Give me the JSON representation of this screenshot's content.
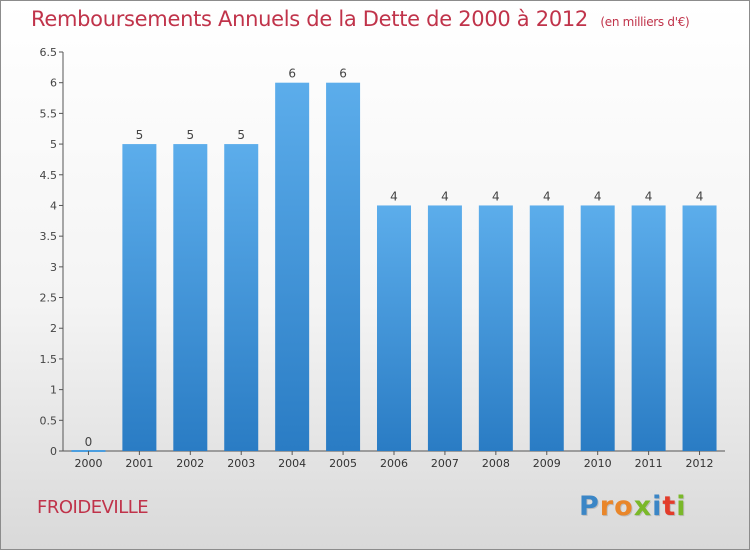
{
  "chart_data": {
    "type": "bar",
    "title": "Remboursements Annuels de la Dette de 2000 à 2012",
    "subtitle": "(en milliers d'€)",
    "categories": [
      "2000",
      "2001",
      "2002",
      "2003",
      "2004",
      "2005",
      "2006",
      "2007",
      "2008",
      "2009",
      "2010",
      "2011",
      "2012"
    ],
    "values": [
      0,
      5,
      5,
      5,
      6,
      6,
      4,
      4,
      4,
      4,
      4,
      4,
      4
    ],
    "data_labels": [
      "0",
      "5",
      "5",
      "5",
      "6",
      "6",
      "4",
      "4",
      "4",
      "4",
      "4",
      "4",
      "4"
    ],
    "y_ticks": [
      "0",
      "0.5",
      "1",
      "1.5",
      "2",
      "2.5",
      "3",
      "3.5",
      "4",
      "4.5",
      "5",
      "5.5",
      "6",
      "6.5"
    ],
    "ylim": [
      0,
      6.5
    ],
    "grid": false,
    "legend": "none",
    "bar_color": "#4a9ee0",
    "axis_color": "#555555"
  },
  "location": "FROIDEVILLE",
  "logo": {
    "letters": [
      "P",
      "r",
      "o",
      "x",
      "i",
      "t",
      "i"
    ]
  }
}
